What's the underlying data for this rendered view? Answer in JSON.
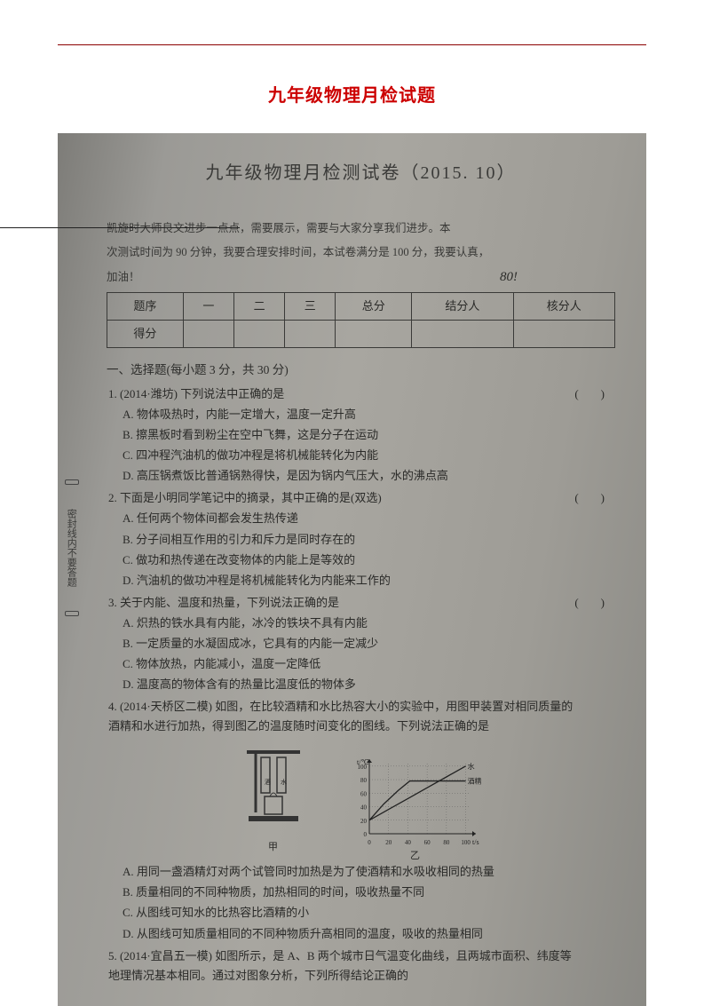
{
  "doc_title": "九年级物理月检试题",
  "scan": {
    "title": "九年级物理月检测试卷（2015. 10）",
    "instr_line1_strike": true,
    "instr_line1_tail": "，需要展示，需要与大家分享我们进步。本",
    "instr_line2": "次测试时间为 90 分钟，我要合理安排时间，本试卷满分是 100 分，我要认真，",
    "instr_line3": "加油！",
    "score_annot": "80!",
    "table": {
      "headers": [
        "题序",
        "一",
        "二",
        "三",
        "总分",
        "结分人",
        "核分人"
      ],
      "row2_label": "得分"
    },
    "section1_header": "一、选择题(每小题 3 分，共 30 分)",
    "questions": [
      {
        "num": "1.",
        "src": "(2014·潍坊)",
        "stem": "下列说法中正确的是",
        "opts": [
          "A. 物体吸热时，内能一定增大，温度一定升高",
          "B. 擦黑板时看到粉尘在空中飞舞，这是分子在运动",
          "C. 四冲程汽油机的做功冲程是将机械能转化为内能",
          "D. 高压锅煮饭比普通锅熟得快，是因为锅内气压大，水的沸点高"
        ]
      },
      {
        "num": "2.",
        "src": "",
        "stem": "下面是小明同学笔记中的摘录，其中正确的是(双选)",
        "opts": [
          "A. 任何两个物体间都会发生热传递",
          "B. 分子间相互作用的引力和斥力是同时存在的",
          "C. 做功和热传递在改变物体的内能上是等效的",
          "D. 汽油机的做功冲程是将机械能转化为内能来工作的"
        ]
      },
      {
        "num": "3.",
        "src": "",
        "stem": "关于内能、温度和热量，下列说法正确的是",
        "opts": [
          "A. 炽热的铁水具有内能，冰冷的铁块不具有内能",
          "B. 一定质量的水凝固成冰，它具有的内能一定减少",
          "C. 物体放热，内能减小，温度一定降低",
          "D. 温度高的物体含有的热量比温度低的物体多"
        ]
      },
      {
        "num": "4.",
        "src": "(2014·天桥区二模)",
        "stem": "如图，在比较酒精和水比热容大小的实验中，用图甲装置对相同质量的酒精和水进行加热，得到图乙的温度随时间变化的图线。下列说法正确的是",
        "opts": [
          "A. 用同一盏酒精灯对两个试管同时加热是为了使酒精和水吸收相同的热量",
          "B. 质量相同的不同种物质，加热相同的时间，吸收热量不同",
          "C. 从图线可知水的比热容比酒精的小",
          "D. 从图线可知质量相同的不同种物质升高相同的温度，吸收的热量相同"
        ]
      },
      {
        "num": "5.",
        "src": "(2014·宜昌五一模)",
        "stem": "如图所示，是 A、B 两个城市日气温变化曲线，且两城市面积、纬度等地理情况基本相同。通过对图象分析，下列所得结论正确的"
      }
    ],
    "figure": {
      "caption_left": "甲",
      "caption_right": "乙",
      "axis": {
        "y_label": "t/℃",
        "x_label": "t/s",
        "y_ticks": [
          0,
          20,
          40,
          60,
          80,
          100
        ],
        "x_ticks": [
          0,
          20,
          40,
          60,
          80,
          100
        ],
        "ylim": [
          0,
          105
        ],
        "xlim": [
          0,
          105
        ],
        "grid_color": "#555",
        "bg": "transparent"
      },
      "series": [
        {
          "label": "水",
          "points": [
            [
              0,
              20
            ],
            [
              20,
              36
            ],
            [
              40,
              52
            ],
            [
              60,
              68
            ],
            [
              80,
              84
            ],
            [
              100,
              100
            ]
          ],
          "color": "#222"
        },
        {
          "label": "酒精",
          "points": [
            [
              0,
              20
            ],
            [
              15,
              44
            ],
            [
              30,
              64
            ],
            [
              42,
              78
            ],
            [
              42,
              78
            ],
            [
              100,
              78
            ]
          ],
          "color": "#222"
        }
      ]
    },
    "side_note": "密封线内不要答题"
  },
  "colors": {
    "title_red": "#cc0000",
    "rule_red": "#8b0000",
    "scan_text": "#2a2a28"
  }
}
